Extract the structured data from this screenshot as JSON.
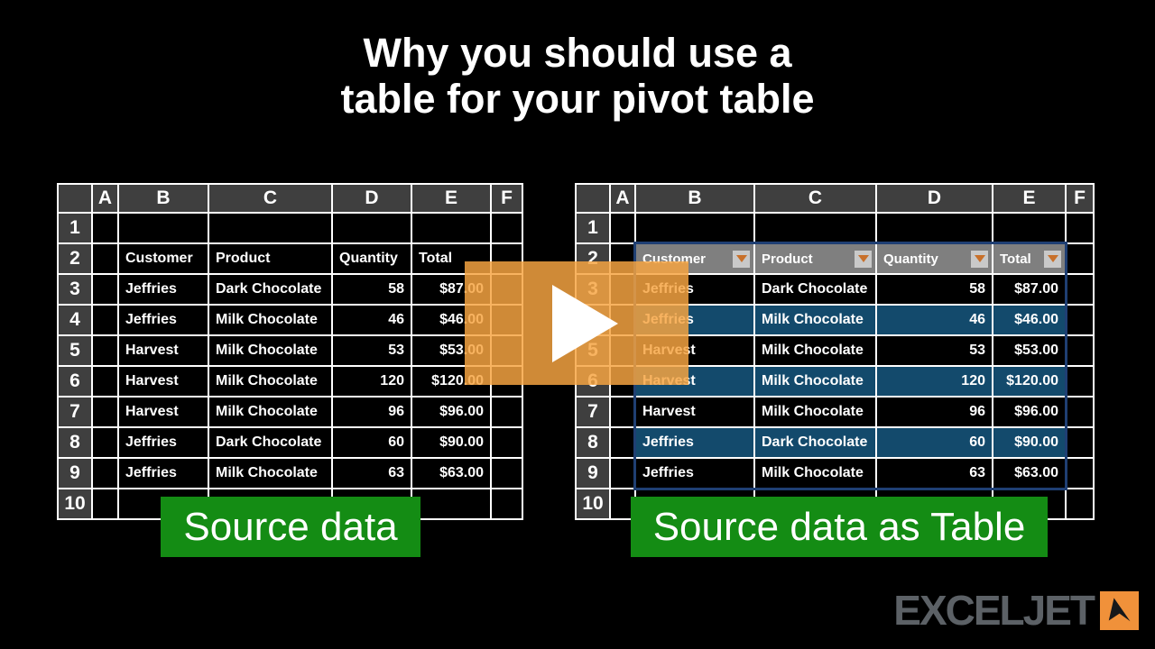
{
  "title": {
    "line1": "Why you should use a",
    "line2": "table for your pivot table"
  },
  "video": {
    "play_icon": "play-triangle-icon"
  },
  "spreadsheet": {
    "column_letters": [
      "A",
      "B",
      "C",
      "D",
      "E",
      "F"
    ],
    "row_numbers": [
      "1",
      "2",
      "3",
      "4",
      "5",
      "6",
      "7",
      "8",
      "9",
      "10"
    ],
    "records": {
      "headers": [
        "Customer",
        "Product",
        "Quantity",
        "Total"
      ],
      "rows": [
        [
          "Jeffries",
          "Dark Chocolate",
          "58",
          "$87.00"
        ],
        [
          "Jeffries",
          "Milk Chocolate",
          "46",
          "$46.00"
        ],
        [
          "Harvest",
          "Milk Chocolate",
          "53",
          "$53.00"
        ],
        [
          "Harvest",
          "Milk Chocolate",
          "120",
          "$120.00"
        ],
        [
          "Harvest",
          "Milk Chocolate",
          "96",
          "$96.00"
        ],
        [
          "Jeffries",
          "Dark Chocolate",
          "60",
          "$90.00"
        ],
        [
          "Jeffries",
          "Milk Chocolate",
          "63",
          "$63.00"
        ]
      ]
    }
  },
  "labels": {
    "left": "Source data",
    "right": "Source data as Table"
  },
  "logo": {
    "text": "EXCELJET",
    "mark": "paper-plane-icon"
  },
  "colors": {
    "header_gray": "#3F3F3F",
    "table_header_gray": "#7F7F7F",
    "filter_gray": "#C9C9C9",
    "filter_orange": "#C8702A",
    "band_blue": "#134A6C",
    "table_border": "#1F3F73",
    "overlay_orange": "rgba(247,164,66,0.84)",
    "green": "#148C14",
    "logo_gray": "#5C6166",
    "logo_orange": "#F0913A"
  }
}
